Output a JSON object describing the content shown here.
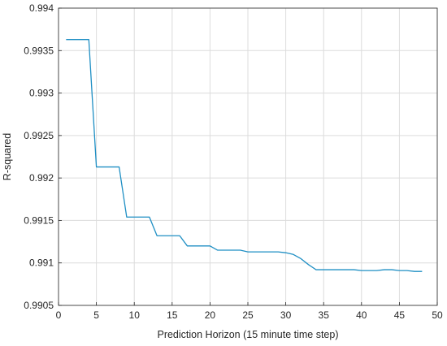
{
  "chart_data": {
    "type": "line",
    "xlabel": "Prediction Horizon (15 minute time step)",
    "ylabel": "R-squared",
    "xlim": [
      0,
      50
    ],
    "ylim": [
      0.9905,
      0.994
    ],
    "xticks": [
      0,
      5,
      10,
      15,
      20,
      25,
      30,
      35,
      40,
      45,
      50
    ],
    "yticks": [
      0.9905,
      0.991,
      0.9915,
      0.992,
      0.9925,
      0.993,
      0.9935,
      0.994
    ],
    "xtick_labels": [
      "0",
      "5",
      "10",
      "15",
      "20",
      "25",
      "30",
      "35",
      "40",
      "45",
      "50"
    ],
    "ytick_labels": [
      "0.9905",
      "0.991",
      "0.9915",
      "0.992",
      "0.9925",
      "0.993",
      "0.9935",
      "0.994"
    ],
    "grid": true,
    "series": [
      {
        "color": "#1f8fc4",
        "x": [
          1,
          4,
          5,
          8,
          9,
          12,
          13,
          16,
          17,
          20,
          21,
          24,
          25,
          28,
          29,
          30,
          31,
          32,
          33,
          34,
          35,
          36,
          37,
          38,
          39,
          40,
          41,
          42,
          43,
          44,
          45,
          46,
          47,
          48
        ],
        "y": [
          0.99363,
          0.99363,
          0.99213,
          0.99213,
          0.99154,
          0.99154,
          0.99132,
          0.99132,
          0.9912,
          0.9912,
          0.99115,
          0.99115,
          0.99113,
          0.99113,
          0.99113,
          0.99112,
          0.9911,
          0.99105,
          0.99098,
          0.99092,
          0.99092,
          0.99092,
          0.99092,
          0.99092,
          0.99092,
          0.99091,
          0.99091,
          0.99091,
          0.99092,
          0.99092,
          0.99091,
          0.99091,
          0.9909,
          0.9909
        ]
      }
    ]
  }
}
